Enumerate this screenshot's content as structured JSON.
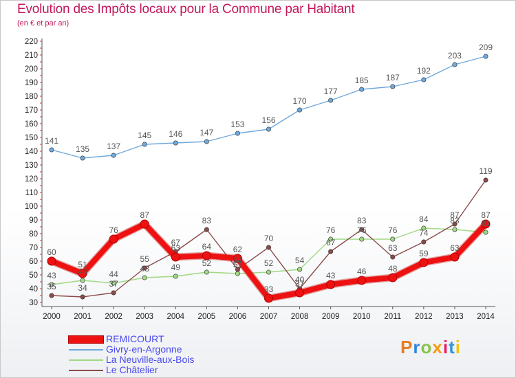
{
  "title": "Evolution des Impôts locaux pour la Commune par Habitant",
  "subtitle": "(en € et par an)",
  "logo": {
    "text": "Proxiti",
    "colors": [
      "#e67e22",
      "#2e86de",
      "#8bc34a",
      "#f39c12",
      "#e91e63",
      "#3498db",
      "#f1c40f"
    ]
  },
  "chart_data": {
    "type": "line",
    "x": [
      "2000",
      "2001",
      "2002",
      "2003",
      "2004",
      "2005",
      "2006",
      "2007",
      "2008",
      "2009",
      "2010",
      "2011",
      "2012",
      "2013",
      "2014"
    ],
    "ylim": [
      30,
      220
    ],
    "yticks": [
      30,
      40,
      50,
      60,
      70,
      80,
      90,
      100,
      110,
      120,
      130,
      140,
      150,
      160,
      170,
      180,
      190,
      200,
      210,
      220
    ],
    "grid": false,
    "legend_position": "bottom-left",
    "series": [
      {
        "name": "REMICOURT",
        "color": "#ee1111",
        "values": [
          60,
          51,
          76,
          87,
          63,
          64,
          62,
          33,
          37,
          43,
          46,
          48,
          59,
          63,
          87
        ]
      },
      {
        "name": "Givry-en-Argonne",
        "color": "#6fa8dc",
        "values": [
          141,
          135,
          137,
          145,
          146,
          147,
          153,
          156,
          170,
          177,
          185,
          187,
          192,
          203,
          209
        ]
      },
      {
        "name": "La Neuville-aux-Bois",
        "color": "#9fd983",
        "values": [
          43,
          46,
          44,
          48,
          49,
          52,
          51,
          52,
          54,
          76,
          76,
          76,
          84,
          83,
          81
        ]
      },
      {
        "name": "Le Châtelier",
        "color": "#8b4b4b",
        "values": [
          35,
          34,
          37,
          55,
          67,
          83,
          54,
          70,
          40,
          67,
          83,
          63,
          74,
          87,
          119
        ]
      }
    ]
  }
}
